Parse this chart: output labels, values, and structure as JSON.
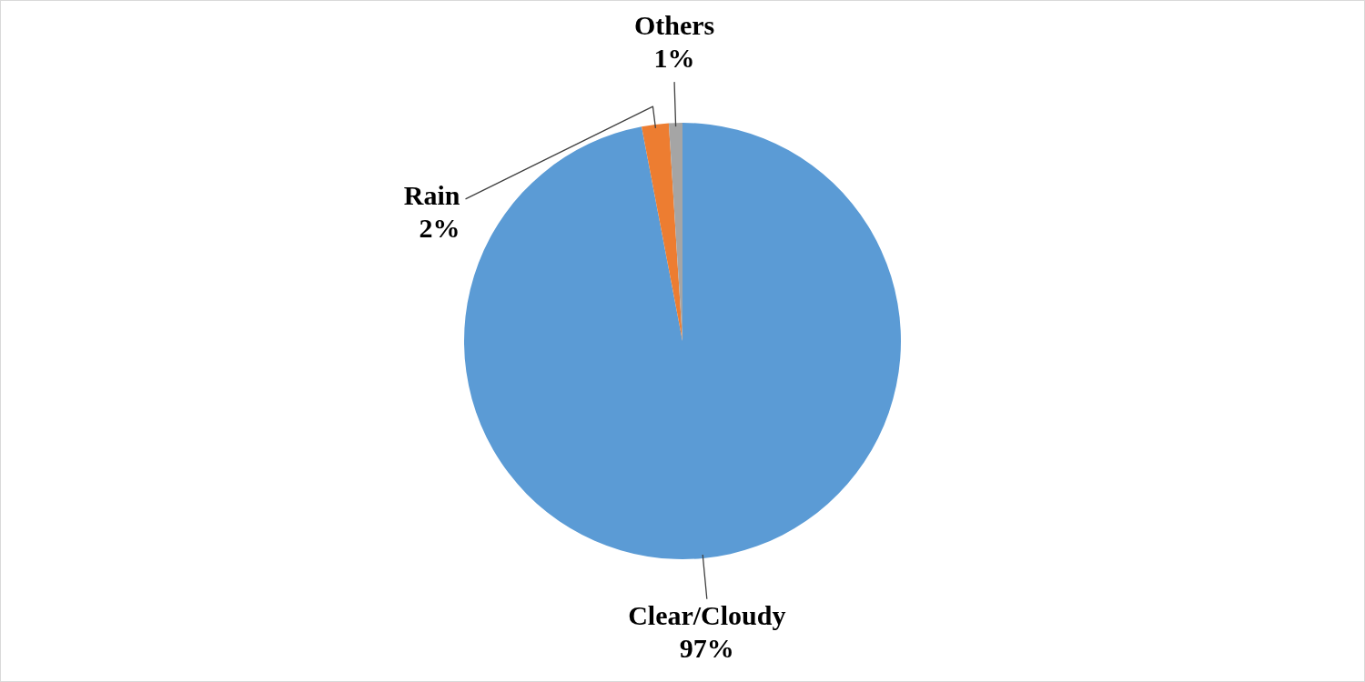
{
  "chart_data": {
    "type": "pie",
    "categories": [
      "Clear/Cloudy",
      "Rain",
      "Others"
    ],
    "values": [
      97,
      2,
      1
    ],
    "colors": [
      "#5b9bd5",
      "#ed7d31",
      "#a5a5a5"
    ],
    "value_labels": [
      "97%",
      "2%",
      "1%"
    ]
  }
}
